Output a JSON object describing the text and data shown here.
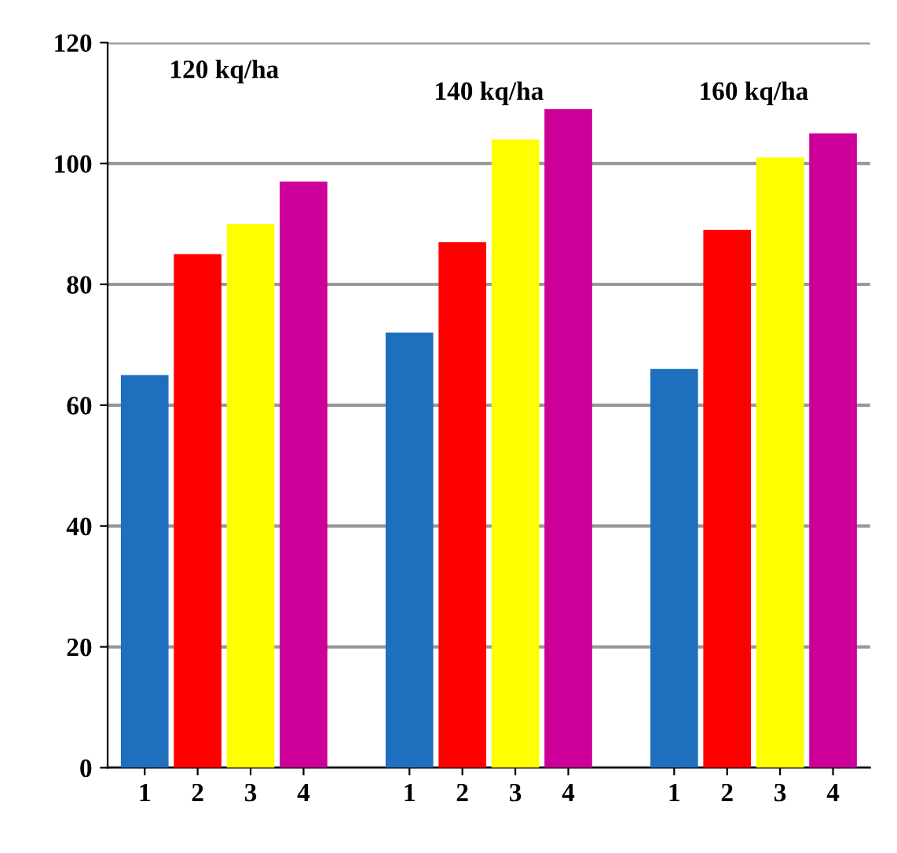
{
  "chart_data": {
    "type": "bar",
    "categories": [
      "1",
      "2",
      "3",
      "4",
      null,
      "1",
      "2",
      "3",
      "4",
      null,
      "1",
      "2",
      "3",
      "4"
    ],
    "values": [
      65,
      85,
      90,
      97,
      null,
      72,
      87,
      104,
      109,
      null,
      66,
      89,
      101,
      105
    ],
    "colors": [
      "#1f6fbf",
      "#ff0000",
      "#ffff00",
      "#cc0099",
      null,
      "#1f6fbf",
      "#ff0000",
      "#ffff00",
      "#cc0099",
      null,
      "#1f6fbf",
      "#ff0000",
      "#ffff00",
      "#cc0099"
    ],
    "annotations": [
      "120 kq/ha",
      "140 kq/ha",
      "160 kq/ha"
    ],
    "ylim": [
      0,
      120
    ],
    "yticks": [
      0,
      20,
      40,
      60,
      80,
      100,
      120
    ],
    "grid": "y"
  }
}
